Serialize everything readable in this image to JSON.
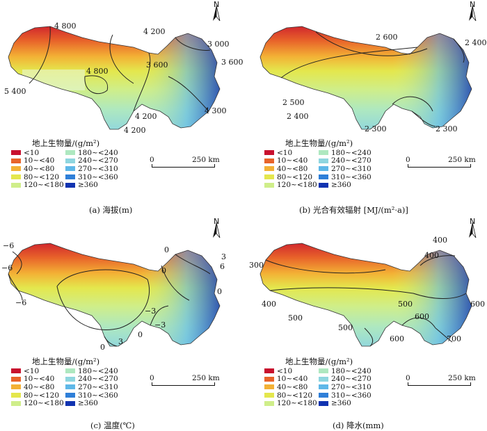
{
  "legend": {
    "title": "地上生物量/(g/m²)",
    "items": [
      {
        "label": "<10",
        "color": "#c8102e"
      },
      {
        "label": "10~<40",
        "color": "#e8642a"
      },
      {
        "label": "40~<80",
        "color": "#f3b135"
      },
      {
        "label": "80~<120",
        "color": "#e4e74d"
      },
      {
        "label": "120~<180",
        "color": "#cfee8a"
      },
      {
        "label": "180~<240",
        "color": "#aee8c0"
      },
      {
        "label": "240~<270",
        "color": "#8fd6df"
      },
      {
        "label": "270~<310",
        "color": "#5fb8e8"
      },
      {
        "label": "310~<360",
        "color": "#2f7fd8"
      },
      {
        "label": "≥360",
        "color": "#1133b0"
      }
    ]
  },
  "scalebar": {
    "zero": "0",
    "distance": "250 km"
  },
  "north_label": "N",
  "panels": [
    {
      "caption": "(a)  海拔(m)",
      "contour_labels": [
        "4 800",
        "4 200",
        "3 000",
        "3 600",
        "3 600",
        "4 800",
        "5 400",
        "4 200",
        "4 300",
        "4 200"
      ]
    },
    {
      "caption": "(b)  光合有效辐射 [MJ/(m²·a)]",
      "contour_labels": [
        "2 600",
        "2 400",
        "2 500",
        "2 400",
        "2 300",
        "2 300"
      ]
    },
    {
      "caption": "(c)  温度(℃)",
      "contour_labels": [
        "−6",
        "−6",
        "−6",
        "0",
        "3",
        "6",
        "0",
        "0",
        "−3",
        "−3",
        "0",
        "3",
        "0"
      ]
    },
    {
      "caption": "(d)  降水(mm)",
      "contour_labels": [
        "400",
        "400",
        "300",
        "400",
        "500",
        "500",
        "600",
        "500",
        "600",
        "600",
        "700"
      ]
    }
  ]
}
